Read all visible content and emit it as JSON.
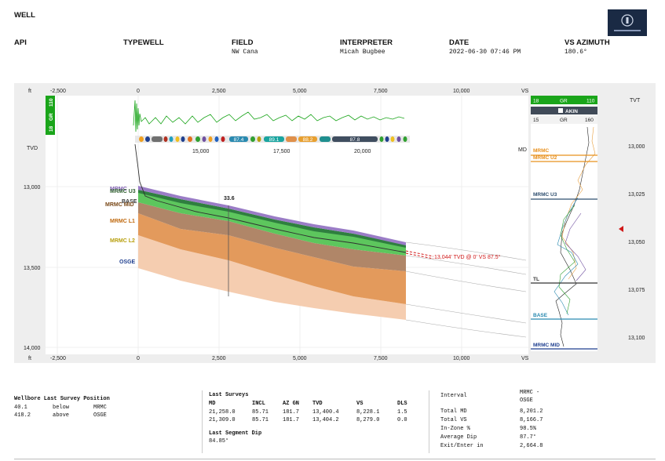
{
  "header": {
    "title": "WELL",
    "fields": [
      {
        "label": "API",
        "value": ""
      },
      {
        "label": "TYPEWELL",
        "value": ""
      },
      {
        "label": "FIELD",
        "value": "NW Cana"
      },
      {
        "label": "INTERPRETER",
        "value": "Micah Bugbee"
      },
      {
        "label": "DATE",
        "value": "2022-06-30 07:46 PM"
      },
      {
        "label": "VS AZIMUTH",
        "value": "180.6°"
      }
    ]
  },
  "section": {
    "unit_left": "ft",
    "vs_ticks": [
      "-2,500",
      "0",
      "2,500",
      "5,000",
      "7,500",
      "10,000"
    ],
    "vs_label": "VS",
    "md_label": "MD",
    "tvd_label": "TVD",
    "md_ticks": [
      "15,000",
      "17,500",
      "20,000"
    ],
    "tvd_ticks": [
      "13,000",
      "13,500",
      "14,000"
    ],
    "gr_axis": [
      "18",
      "GR",
      "110"
    ],
    "dip_values": [
      "87.4",
      "89.1",
      "88.2",
      "87.8"
    ],
    "dip_annotation": "33.6",
    "projection_label": "13,044' TVD @ 0' VS 87.5°",
    "formations": [
      {
        "name": "MRMC",
        "color": "#7f5fb0"
      },
      {
        "name": "MRMC U2",
        "color": "#3c7f3c"
      },
      {
        "name": "MRMC U3",
        "color": "#2f5f2f"
      },
      {
        "name": "BASE",
        "color": "#333333"
      },
      {
        "name": "MRMC MID",
        "color": "#7a4a1a"
      },
      {
        "name": "MRMC L1",
        "color": "#c06a10"
      },
      {
        "name": "MRMC L2",
        "color": "#b8a010"
      },
      {
        "name": "OSGE",
        "color": "#1f3f8f"
      }
    ]
  },
  "typelog": {
    "gr_top": {
      "min": "18",
      "label": "GR",
      "max": "110"
    },
    "well_name": "AKIN",
    "gr_bottom": {
      "min": "15",
      "label": "GR",
      "max": "160"
    },
    "tvt_label": "TVT",
    "tvt_ticks": [
      "13,000",
      "13,025",
      "13,050",
      "13,075",
      "13,100"
    ],
    "tops": [
      {
        "name": "MRMC",
        "color": "#e8901c"
      },
      {
        "name": "MRMC U2",
        "color": "#e8901c"
      },
      {
        "name": "MRMC U3",
        "color": "#2f4f6f"
      },
      {
        "name": "TL",
        "color": "#333333"
      },
      {
        "name": "BASE",
        "color": "#2a8ab0"
      },
      {
        "name": "MRMC MID",
        "color": "#1f3f8f"
      }
    ]
  },
  "summary": {
    "position": {
      "title": "Wellbore Last Survey Position",
      "rows": [
        [
          "40.1",
          "below",
          "MRMC"
        ],
        [
          "418.2",
          "above",
          "OSGE"
        ]
      ]
    },
    "surveys": {
      "title": "Last Surveys",
      "columns": [
        "MD",
        "INCL",
        "AZ GN",
        "TVD",
        "VS",
        "DLS"
      ],
      "rows": [
        [
          "21,258.0",
          "85.71",
          "181.7",
          "13,400.4",
          "8,228.1",
          "1.5"
        ],
        [
          "21,309.0",
          "85.71",
          "181.7",
          "13,404.2",
          "8,279.0",
          "0.0"
        ]
      ],
      "segment_title": "Last Segment Dip",
      "segment_value": "84.85°"
    },
    "interval": {
      "title": "Interval",
      "col": [
        "MRMC -",
        "OSGE"
      ],
      "rows": [
        [
          "Total MD",
          "8,201.2"
        ],
        [
          "Total VS",
          "8,166.7"
        ],
        [
          "In-Zone %",
          "98.5%"
        ],
        [
          "Average Dip",
          "87.7°"
        ],
        [
          "Exit/Enter in",
          "2,664.8"
        ]
      ]
    }
  },
  "colors": {
    "gr_green": "#1aa51a",
    "purple_band": "#9878c0",
    "green_band": "#5cc85c",
    "dark_band": "#a07a5a",
    "orange_band": "#e0904a",
    "light_band": "#f5c8a8",
    "projection": "#d01818"
  }
}
